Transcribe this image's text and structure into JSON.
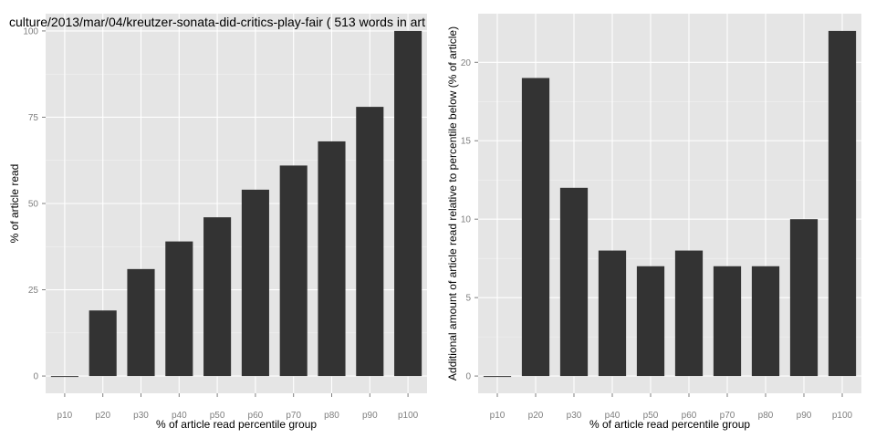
{
  "chart_data": [
    {
      "type": "bar",
      "title": "culture/2013/mar/04/kreutzer-sonata-did-critics-play-fair ( 513 words in art",
      "xlabel": "% of article read percentile group",
      "ylabel": "% of article read",
      "categories": [
        "p10",
        "p20",
        "p30",
        "p40",
        "p50",
        "p60",
        "p70",
        "p80",
        "p90",
        "p100"
      ],
      "values": [
        0,
        19,
        31,
        39,
        46,
        54,
        61,
        68,
        78,
        100
      ],
      "ylim": [
        -5,
        105
      ],
      "yticks": [
        0,
        25,
        50,
        75,
        100
      ],
      "grid": true,
      "bar_color": "#333333",
      "panel_color": "#e5e5e5"
    },
    {
      "type": "bar",
      "title": "",
      "xlabel": "% of article read percentile group",
      "ylabel": "Additional amount of article read relative to percentile below (% of article)",
      "categories": [
        "p10",
        "p20",
        "p30",
        "p40",
        "p50",
        "p60",
        "p70",
        "p80",
        "p90",
        "p100"
      ],
      "values": [
        0,
        19,
        12,
        8,
        7,
        8,
        7,
        7,
        10,
        22
      ],
      "ylim": [
        -1.1,
        23.1
      ],
      "yticks": [
        0,
        5,
        10,
        15,
        20
      ],
      "grid": true,
      "bar_color": "#333333",
      "panel_color": "#e5e5e5"
    }
  ]
}
